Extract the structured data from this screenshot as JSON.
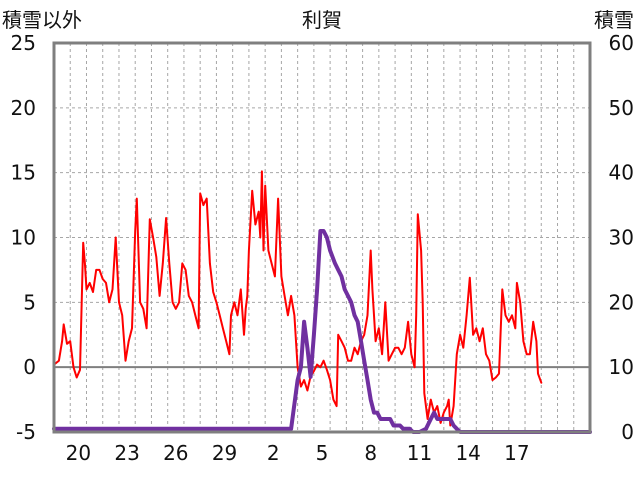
{
  "chart_data": {
    "type": "line",
    "title": "利賀",
    "ylabel_left": "積雪以外",
    "ylabel_right": "積雪",
    "ylim_left": [
      -5,
      25
    ],
    "ylim_right": [
      0,
      60
    ],
    "yticks_left": [
      "25",
      "20",
      "15",
      "10",
      "5",
      "0",
      "-5"
    ],
    "yticks_right": [
      "60",
      "50",
      "40",
      "30",
      "20",
      "10",
      "0"
    ],
    "x_range": [
      0,
      33
    ],
    "x_tick_labels": [
      {
        "x": 1.5,
        "label": "20"
      },
      {
        "x": 4.5,
        "label": "23"
      },
      {
        "x": 7.5,
        "label": "26"
      },
      {
        "x": 10.5,
        "label": "29"
      },
      {
        "x": 13.5,
        "label": "2"
      },
      {
        "x": 16.5,
        "label": "5"
      },
      {
        "x": 19.5,
        "label": "8"
      },
      {
        "x": 22.5,
        "label": "11"
      },
      {
        "x": 25.5,
        "label": "14"
      },
      {
        "x": 28.5,
        "label": "17"
      }
    ],
    "grid": true,
    "zero_line_left": 0,
    "series": [
      {
        "axis": "left",
        "color": "#ff0000",
        "values": [
          [
            0.0,
            0.2
          ],
          [
            0.3,
            0.5
          ],
          [
            0.5,
            2.0
          ],
          [
            0.6,
            3.3
          ],
          [
            0.8,
            1.8
          ],
          [
            1.0,
            2.0
          ],
          [
            1.2,
            0.0
          ],
          [
            1.4,
            -0.8
          ],
          [
            1.6,
            -0.2
          ],
          [
            1.8,
            9.6
          ],
          [
            1.9,
            8.0
          ],
          [
            2.0,
            6.0
          ],
          [
            2.2,
            6.5
          ],
          [
            2.4,
            5.8
          ],
          [
            2.6,
            7.5
          ],
          [
            2.8,
            7.5
          ],
          [
            3.0,
            6.8
          ],
          [
            3.2,
            6.5
          ],
          [
            3.4,
            5.0
          ],
          [
            3.6,
            6.0
          ],
          [
            3.8,
            10.0
          ],
          [
            4.0,
            5.0
          ],
          [
            4.2,
            4.0
          ],
          [
            4.4,
            0.5
          ],
          [
            4.6,
            2.0
          ],
          [
            4.8,
            3.0
          ],
          [
            5.0,
            10.5
          ],
          [
            5.1,
            13.0
          ],
          [
            5.3,
            5.0
          ],
          [
            5.5,
            4.5
          ],
          [
            5.7,
            3.0
          ],
          [
            5.9,
            11.4
          ],
          [
            6.1,
            10.0
          ],
          [
            6.3,
            8.5
          ],
          [
            6.5,
            5.5
          ],
          [
            6.7,
            8.0
          ],
          [
            6.9,
            11.5
          ],
          [
            7.1,
            8.0
          ],
          [
            7.3,
            5.0
          ],
          [
            7.5,
            4.5
          ],
          [
            7.7,
            5.0
          ],
          [
            7.9,
            8.0
          ],
          [
            8.1,
            7.5
          ],
          [
            8.3,
            5.5
          ],
          [
            8.5,
            5.0
          ],
          [
            8.7,
            4.0
          ],
          [
            8.9,
            3.0
          ],
          [
            9.0,
            13.4
          ],
          [
            9.2,
            12.5
          ],
          [
            9.4,
            13.0
          ],
          [
            9.6,
            8.0
          ],
          [
            9.8,
            5.8
          ],
          [
            10.0,
            5.0
          ],
          [
            10.2,
            4.0
          ],
          [
            10.4,
            3.0
          ],
          [
            10.6,
            2.0
          ],
          [
            10.8,
            1.0
          ],
          [
            10.9,
            4.0
          ],
          [
            11.1,
            5.0
          ],
          [
            11.3,
            4.0
          ],
          [
            11.5,
            6.0
          ],
          [
            11.7,
            2.5
          ],
          [
            11.8,
            4.5
          ],
          [
            11.9,
            5.5
          ],
          [
            12.0,
            9.0
          ],
          [
            12.2,
            13.6
          ],
          [
            12.4,
            11.0
          ],
          [
            12.6,
            12.0
          ],
          [
            12.7,
            10.0
          ],
          [
            12.8,
            15.1
          ],
          [
            12.9,
            9.0
          ],
          [
            13.0,
            14.0
          ],
          [
            13.2,
            9.0
          ],
          [
            13.4,
            8.0
          ],
          [
            13.6,
            7.0
          ],
          [
            13.8,
            13.0
          ],
          [
            14.0,
            7.0
          ],
          [
            14.2,
            5.5
          ],
          [
            14.4,
            4.0
          ],
          [
            14.6,
            5.5
          ],
          [
            14.8,
            4.0
          ],
          [
            15.0,
            0.0
          ],
          [
            15.2,
            -1.5
          ],
          [
            15.4,
            -1.0
          ],
          [
            15.6,
            -1.8
          ],
          [
            15.8,
            -0.7
          ],
          [
            16.0,
            -0.3
          ],
          [
            16.2,
            0.2
          ],
          [
            16.4,
            0.0
          ],
          [
            16.6,
            0.5
          ],
          [
            16.8,
            -0.2
          ],
          [
            17.0,
            -1.0
          ],
          [
            17.2,
            -2.5
          ],
          [
            17.4,
            -3.0
          ],
          [
            17.5,
            2.5
          ],
          [
            17.7,
            2.0
          ],
          [
            17.9,
            1.5
          ],
          [
            18.1,
            0.5
          ],
          [
            18.3,
            0.5
          ],
          [
            18.5,
            1.5
          ],
          [
            18.7,
            1.0
          ],
          [
            18.9,
            2.0
          ],
          [
            19.1,
            2.5
          ],
          [
            19.3,
            4.0
          ],
          [
            19.5,
            9.0
          ],
          [
            19.6,
            6.0
          ],
          [
            19.8,
            2.0
          ],
          [
            20.0,
            3.0
          ],
          [
            20.2,
            1.0
          ],
          [
            20.4,
            5.0
          ],
          [
            20.6,
            0.5
          ],
          [
            20.8,
            1.0
          ],
          [
            21.0,
            1.5
          ],
          [
            21.2,
            1.5
          ],
          [
            21.4,
            1.0
          ],
          [
            21.6,
            1.5
          ],
          [
            21.8,
            3.5
          ],
          [
            22.0,
            1.0
          ],
          [
            22.2,
            0.0
          ],
          [
            22.3,
            4.0
          ],
          [
            22.4,
            11.8
          ],
          [
            22.6,
            9.0
          ],
          [
            22.7,
            5.0
          ],
          [
            22.8,
            -2.0
          ],
          [
            23.0,
            -4.0
          ],
          [
            23.2,
            -2.5
          ],
          [
            23.4,
            -3.5
          ],
          [
            23.6,
            -3.0
          ],
          [
            23.8,
            -4.3
          ],
          [
            24.0,
            -3.5
          ],
          [
            24.2,
            -3.0
          ],
          [
            24.3,
            -2.5
          ],
          [
            24.4,
            -4.5
          ],
          [
            24.6,
            -3.0
          ],
          [
            24.8,
            1.0
          ],
          [
            25.0,
            2.5
          ],
          [
            25.2,
            1.5
          ],
          [
            25.4,
            4.0
          ],
          [
            25.6,
            6.9
          ],
          [
            25.8,
            2.5
          ],
          [
            26.0,
            3.0
          ],
          [
            26.2,
            2.0
          ],
          [
            26.4,
            3.0
          ],
          [
            26.6,
            1.0
          ],
          [
            26.8,
            0.5
          ],
          [
            27.0,
            -1.0
          ],
          [
            27.2,
            -0.8
          ],
          [
            27.4,
            -0.5
          ],
          [
            27.6,
            6.0
          ],
          [
            27.8,
            4.0
          ],
          [
            28.0,
            3.5
          ],
          [
            28.2,
            4.0
          ],
          [
            28.4,
            3.0
          ],
          [
            28.5,
            6.5
          ],
          [
            28.7,
            5.0
          ],
          [
            28.9,
            2.0
          ],
          [
            29.1,
            1.0
          ],
          [
            29.3,
            1.0
          ],
          [
            29.5,
            3.5
          ],
          [
            29.7,
            2.0
          ],
          [
            29.8,
            -0.5
          ],
          [
            30.0,
            -1.2
          ]
        ]
      },
      {
        "axis": "right",
        "color": "#7030a0",
        "values": [
          [
            0.0,
            0.5
          ],
          [
            14.6,
            0.5
          ],
          [
            15.0,
            8.0
          ],
          [
            15.2,
            10.0
          ],
          [
            15.4,
            17.0
          ],
          [
            15.6,
            13.0
          ],
          [
            15.8,
            8.5
          ],
          [
            16.0,
            15.0
          ],
          [
            16.2,
            22.0
          ],
          [
            16.4,
            31.0
          ],
          [
            16.6,
            31.0
          ],
          [
            16.8,
            30.0
          ],
          [
            17.0,
            28.0
          ],
          [
            17.3,
            26.0
          ],
          [
            17.5,
            25.0
          ],
          [
            17.7,
            24.0
          ],
          [
            17.9,
            22.0
          ],
          [
            18.1,
            21.0
          ],
          [
            18.3,
            20.0
          ],
          [
            18.5,
            18.0
          ],
          [
            18.7,
            17.0
          ],
          [
            18.9,
            14.0
          ],
          [
            19.1,
            11.0
          ],
          [
            19.3,
            8.0
          ],
          [
            19.5,
            5.0
          ],
          [
            19.7,
            3.0
          ],
          [
            19.9,
            3.0
          ],
          [
            20.1,
            2.0
          ],
          [
            20.3,
            2.0
          ],
          [
            20.5,
            2.0
          ],
          [
            20.7,
            2.0
          ],
          [
            20.9,
            1.0
          ],
          [
            21.1,
            1.0
          ],
          [
            21.3,
            1.0
          ],
          [
            21.5,
            0.5
          ],
          [
            21.7,
            0.5
          ],
          [
            21.9,
            0.5
          ],
          [
            22.1,
            0.0
          ],
          [
            22.5,
            0.0
          ],
          [
            22.9,
            0.5
          ],
          [
            23.2,
            2.0
          ],
          [
            23.4,
            3.0
          ],
          [
            23.6,
            2.0
          ],
          [
            23.8,
            2.0
          ],
          [
            24.0,
            2.0
          ],
          [
            24.2,
            2.0
          ],
          [
            24.4,
            2.0
          ],
          [
            24.6,
            1.0
          ],
          [
            24.8,
            0.5
          ],
          [
            25.0,
            0.0
          ],
          [
            25.2,
            0.0
          ],
          [
            25.4,
            0.0
          ],
          [
            33.0,
            0.0
          ]
        ]
      }
    ]
  }
}
